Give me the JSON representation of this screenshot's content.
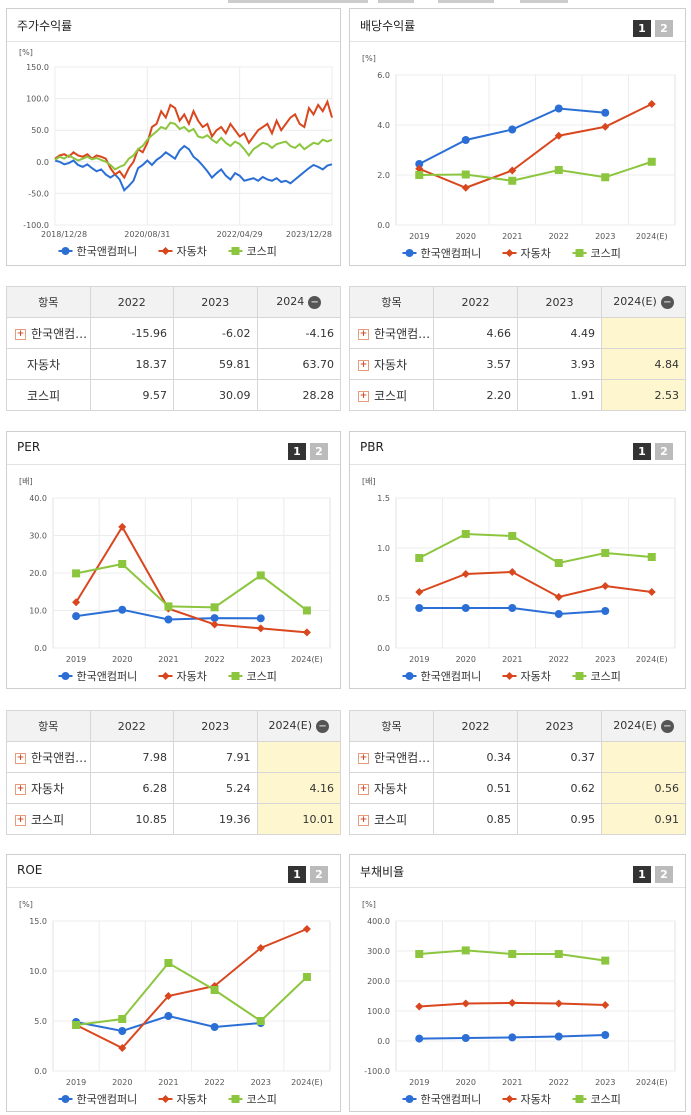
{
  "colors": {
    "s1": "#2b6fd6",
    "s2": "#d9471f",
    "s3": "#8cc63f"
  },
  "pager": {
    "p1": "1",
    "p2": "2"
  },
  "legend": [
    "한국앤컴퍼니",
    "자동차",
    "코스피"
  ],
  "price": {
    "title": "주가수익률",
    "chart_data": {
      "type": "line",
      "ylabel": "[%]",
      "ylim": [
        -100,
        150
      ],
      "yticks": [
        "150.0",
        "100.0",
        "50.0",
        "0.0",
        "-50.0",
        "-100.0"
      ],
      "xticks": [
        "2018/12/28",
        "2020/08/31",
        "2022/04/29",
        "2023/12/28"
      ],
      "x_range": [
        0,
        60
      ],
      "xtick_pos": [
        0,
        20,
        40,
        60
      ],
      "series": [
        {
          "name": "한국앤컴퍼니",
          "values": [
            2,
            0,
            -4,
            -2,
            2,
            -5,
            -8,
            -4,
            -10,
            -15,
            -12,
            -20,
            -25,
            -20,
            -28,
            -45,
            -38,
            -30,
            -10,
            -5,
            2,
            -5,
            3,
            8,
            15,
            10,
            5,
            18,
            25,
            20,
            8,
            2,
            -6,
            -15,
            -25,
            -18,
            -12,
            -22,
            -28,
            -18,
            -22,
            -30,
            -28,
            -26,
            -30,
            -24,
            -28,
            -30,
            -26,
            -32,
            -30,
            -34,
            -28,
            -22,
            -16,
            -10,
            -5,
            -8,
            -12,
            -6,
            -4
          ]
        },
        {
          "name": "자동차",
          "values": [
            5,
            10,
            12,
            8,
            15,
            10,
            8,
            12,
            5,
            10,
            8,
            5,
            -10,
            -20,
            -15,
            -25,
            -10,
            0,
            20,
            15,
            30,
            55,
            60,
            80,
            70,
            90,
            85,
            65,
            75,
            60,
            80,
            65,
            55,
            60,
            40,
            50,
            55,
            45,
            60,
            50,
            40,
            45,
            30,
            40,
            50,
            55,
            60,
            45,
            65,
            50,
            60,
            70,
            75,
            60,
            55,
            85,
            75,
            90,
            80,
            95,
            70
          ]
        },
        {
          "name": "코스피",
          "values": [
            3,
            8,
            5,
            10,
            6,
            2,
            5,
            8,
            4,
            6,
            3,
            0,
            -5,
            -12,
            -8,
            -5,
            5,
            10,
            20,
            25,
            35,
            42,
            48,
            55,
            52,
            62,
            60,
            52,
            55,
            48,
            52,
            40,
            38,
            42,
            35,
            30,
            38,
            30,
            25,
            32,
            28,
            20,
            10,
            20,
            25,
            30,
            28,
            22,
            28,
            30,
            32,
            25,
            22,
            28,
            20,
            25,
            30,
            28,
            35,
            32,
            35
          ]
        }
      ]
    }
  },
  "dividend": {
    "title": "배당수익률",
    "chart_data": {
      "type": "line",
      "ylabel": "[%]",
      "ylim": [
        0,
        6
      ],
      "yticks": [
        "6.0",
        "4.0",
        "2.0",
        "0.0"
      ],
      "categories": [
        "2019",
        "2020",
        "2021",
        "2022",
        "2023",
        "2024(E)"
      ],
      "series": [
        {
          "name": "한국앤컴퍼니",
          "values": [
            2.44,
            3.4,
            3.82,
            4.66,
            4.49,
            null
          ]
        },
        {
          "name": "자동차",
          "values": [
            2.25,
            1.49,
            2.18,
            3.57,
            3.93,
            4.84
          ]
        },
        {
          "name": "코스피",
          "values": [
            2.0,
            2.02,
            1.77,
            2.2,
            1.91,
            2.53
          ]
        }
      ]
    }
  },
  "per": {
    "title": "PER",
    "chart_data": {
      "type": "line",
      "ylabel": "[배]",
      "ylim": [
        0,
        40
      ],
      "yticks": [
        "40.0",
        "30.0",
        "20.0",
        "10.0",
        "0.0"
      ],
      "categories": [
        "2019",
        "2020",
        "2021",
        "2022",
        "2023",
        "2024(E)"
      ],
      "series": [
        {
          "name": "한국앤컴퍼니",
          "values": [
            8.5,
            10.2,
            7.6,
            7.98,
            7.91,
            null
          ]
        },
        {
          "name": "자동차",
          "values": [
            12.2,
            32.3,
            10.5,
            6.28,
            5.24,
            4.16
          ]
        },
        {
          "name": "코스피",
          "values": [
            19.9,
            22.4,
            11.1,
            10.85,
            19.36,
            10.01
          ]
        }
      ]
    }
  },
  "pbr": {
    "title": "PBR",
    "chart_data": {
      "type": "line",
      "ylabel": "[배]",
      "ylim": [
        0,
        1.5
      ],
      "yticks": [
        "1.5",
        "1.0",
        "0.5",
        "0.0"
      ],
      "categories": [
        "2019",
        "2020",
        "2021",
        "2022",
        "2023",
        "2024(E)"
      ],
      "series": [
        {
          "name": "한국앤컴퍼니",
          "values": [
            0.4,
            0.4,
            0.4,
            0.34,
            0.37,
            null
          ]
        },
        {
          "name": "자동차",
          "values": [
            0.56,
            0.74,
            0.76,
            0.51,
            0.62,
            0.56
          ]
        },
        {
          "name": "코스피",
          "values": [
            0.9,
            1.14,
            1.12,
            0.85,
            0.95,
            0.91
          ]
        }
      ]
    }
  },
  "roe": {
    "title": "ROE",
    "chart_data": {
      "type": "line",
      "ylabel": "[%]",
      "ylim": [
        0,
        15
      ],
      "yticks": [
        "15.0",
        "10.0",
        "5.0",
        "0.0"
      ],
      "categories": [
        "2019",
        "2020",
        "2021",
        "2022",
        "2023",
        "2024(E)"
      ],
      "series": [
        {
          "name": "한국앤컴퍼니",
          "values": [
            4.9,
            4.0,
            5.5,
            4.4,
            4.8,
            null
          ]
        },
        {
          "name": "자동차",
          "values": [
            4.6,
            2.3,
            7.5,
            8.5,
            12.3,
            14.2
          ]
        },
        {
          "name": "코스피",
          "values": [
            4.6,
            5.2,
            10.8,
            8.1,
            5.0,
            9.4
          ]
        }
      ]
    }
  },
  "debt": {
    "title": "부채비율",
    "chart_data": {
      "type": "line",
      "ylabel": "[%]",
      "ylim": [
        -100,
        400
      ],
      "yticks": [
        "400.0",
        "300.0",
        "200.0",
        "100.0",
        "0.0",
        "-100.0"
      ],
      "categories": [
        "2019",
        "2020",
        "2021",
        "2022",
        "2023",
        "2024(E)"
      ],
      "series": [
        {
          "name": "한국앤컴퍼니",
          "values": [
            8,
            10,
            12,
            15,
            20,
            null
          ]
        },
        {
          "name": "자동차",
          "values": [
            115,
            125,
            127,
            125,
            120,
            null
          ]
        },
        {
          "name": "코스피",
          "values": [
            290,
            302,
            290,
            290,
            268,
            null
          ]
        }
      ]
    }
  },
  "tables": {
    "price": {
      "headers": [
        "항목",
        "2022",
        "2023",
        "2024"
      ],
      "rows": [
        {
          "name": "한국앤컴…",
          "plus": true,
          "vals": [
            "-15.96",
            "-6.02",
            "-4.16"
          ]
        },
        {
          "name": "자동차",
          "plus": false,
          "vals": [
            "18.37",
            "59.81",
            "63.70"
          ]
        },
        {
          "name": "코스피",
          "plus": false,
          "vals": [
            "9.57",
            "30.09",
            "28.28"
          ]
        }
      ]
    },
    "dividend": {
      "headers": [
        "항목",
        "2022",
        "2023",
        "2024(E)"
      ],
      "rows": [
        {
          "name": "한국앤컴…",
          "plus": true,
          "vals": [
            "4.66",
            "4.49",
            ""
          ]
        },
        {
          "name": "자동차",
          "plus": true,
          "vals": [
            "3.57",
            "3.93",
            "4.84"
          ]
        },
        {
          "name": "코스피",
          "plus": true,
          "vals": [
            "2.20",
            "1.91",
            "2.53"
          ]
        }
      ]
    },
    "per": {
      "headers": [
        "항목",
        "2022",
        "2023",
        "2024(E)"
      ],
      "rows": [
        {
          "name": "한국앤컴…",
          "plus": true,
          "vals": [
            "7.98",
            "7.91",
            ""
          ]
        },
        {
          "name": "자동차",
          "plus": true,
          "vals": [
            "6.28",
            "5.24",
            "4.16"
          ]
        },
        {
          "name": "코스피",
          "plus": true,
          "vals": [
            "10.85",
            "19.36",
            "10.01"
          ]
        }
      ]
    },
    "pbr": {
      "headers": [
        "항목",
        "2022",
        "2023",
        "2024(E)"
      ],
      "rows": [
        {
          "name": "한국앤컴…",
          "plus": true,
          "vals": [
            "0.34",
            "0.37",
            ""
          ]
        },
        {
          "name": "자동차",
          "plus": true,
          "vals": [
            "0.51",
            "0.62",
            "0.56"
          ]
        },
        {
          "name": "코스피",
          "plus": true,
          "vals": [
            "0.85",
            "0.95",
            "0.91"
          ]
        }
      ]
    }
  }
}
